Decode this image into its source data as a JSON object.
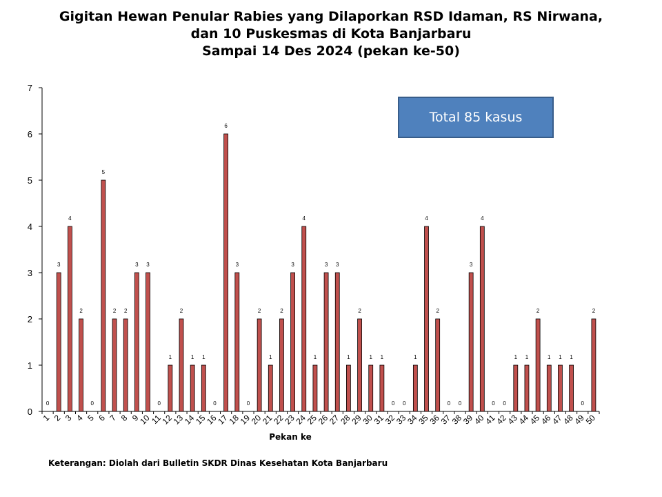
{
  "chart_data": {
    "type": "bar",
    "title_lines": [
      "Gigitan Hewan Penular Rabies yang Dilaporkan RSD Idaman, RS Nirwana,",
      "dan 10 Puskesmas di Kota Banjarbaru",
      "Sampai 14 Des 2024 (pekan ke-50)"
    ],
    "xlabel": "Pekan ke",
    "ylabel": "",
    "ylim": [
      0,
      7
    ],
    "yticks": [
      0,
      1,
      2,
      3,
      4,
      5,
      6,
      7
    ],
    "categories": [
      "1",
      "2",
      "3",
      "4",
      "5",
      "6",
      "7",
      "8",
      "9",
      "10",
      "11",
      "12",
      "13",
      "14",
      "15",
      "16",
      "17",
      "18",
      "19",
      "20",
      "21",
      "22",
      "23",
      "24",
      "25",
      "26",
      "27",
      "28",
      "29",
      "30",
      "31",
      "32",
      "33",
      "34",
      "35",
      "36",
      "37",
      "38",
      "39",
      "40",
      "41",
      "42",
      "43",
      "44",
      "45",
      "46",
      "47",
      "48",
      "49",
      "50"
    ],
    "values": [
      0,
      3,
      4,
      2,
      0,
      5,
      2,
      2,
      3,
      3,
      0,
      1,
      2,
      1,
      1,
      0,
      6,
      3,
      0,
      2,
      1,
      2,
      3,
      4,
      1,
      3,
      3,
      1,
      2,
      1,
      1,
      0,
      0,
      1,
      4,
      2,
      0,
      0,
      3,
      4,
      0,
      0,
      1,
      1,
      2,
      1,
      1,
      1,
      0,
      2
    ],
    "bar_color": "#c0504d",
    "bar_edge_color": "#000000",
    "grid": false,
    "annotation": "Total 85 kasus",
    "annotation_color": "#4f81bd"
  },
  "footnote": "Keterangan: Diolah dari Bulletin SKDR Dinas Kesehatan Kota Banjarbaru"
}
